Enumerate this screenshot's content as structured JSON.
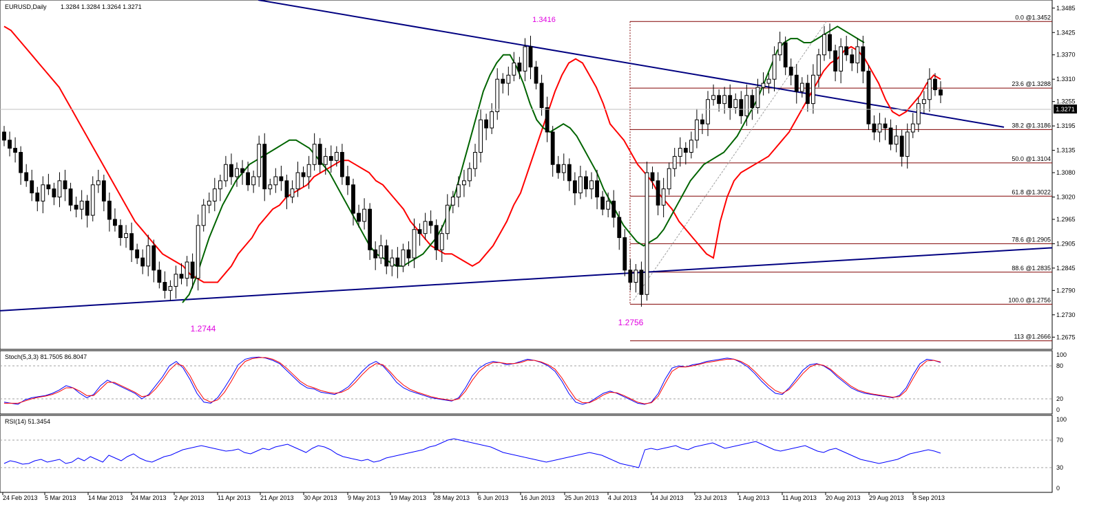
{
  "header": {
    "symbol": "EURUSD,Daily",
    "ohlc": "1.3284 1.3284 1.3264 1.3271"
  },
  "colors": {
    "bull_candle": "#ffffff",
    "bear_candle": "#000000",
    "ma_fast": "#ff0000",
    "ma_slow": "#006400",
    "ma_transition": "#ffff00",
    "trendline": "#000080",
    "fib_lines": "#800000",
    "stoch_main": "#0000ff",
    "stoch_signal": "#ff0000",
    "rsi": "#0000ff",
    "annotation": "#e000e0"
  },
  "chart_data": [
    {
      "type": "candlestick",
      "title": "EURUSD,Daily",
      "ohlc_last": {
        "open": 1.3284,
        "high": 1.3284,
        "low": 1.3264,
        "close": 1.3271
      },
      "current_price_label": "1.3271",
      "ylim": [
        1.2645,
        1.3505
      ],
      "y_ticks": [
        "1.3485",
        "1.3425",
        "1.3370",
        "1.3310",
        "1.3255",
        "1.3195",
        "1.3135",
        "1.3080",
        "1.3020",
        "1.2965",
        "1.2905",
        "1.2845",
        "1.2790",
        "1.2730",
        "1.2675"
      ],
      "x_ticks": [
        "24 Feb 2013",
        "5 Mar 2013",
        "14 Mar 2013",
        "24 Mar 2013",
        "2 Apr 2013",
        "11 Apr 2013",
        "21 Apr 2013",
        "30 Apr 2013",
        "9 May 2013",
        "19 May 2013",
        "28 May 2013",
        "6 Jun 2013",
        "16 Jun 2013",
        "25 Jun 2013",
        "4 Jul 2013",
        "14 Jul 2013",
        "23 Jul 2013",
        "1 Aug 2013",
        "11 Aug 2013",
        "20 Aug 2013",
        "29 Aug 2013",
        "8 Sep 2013"
      ],
      "closes": [
        1.316,
        1.314,
        1.313,
        1.308,
        1.306,
        1.303,
        1.301,
        1.305,
        1.304,
        1.302,
        1.306,
        1.304,
        1.3,
        1.299,
        1.301,
        1.2975,
        1.305,
        1.306,
        1.301,
        1.2965,
        1.295,
        1.292,
        1.293,
        1.289,
        1.287,
        1.285,
        1.29,
        1.284,
        1.281,
        1.279,
        1.28,
        1.283,
        1.282,
        1.286,
        1.282,
        1.295,
        1.3,
        1.301,
        1.304,
        1.306,
        1.31,
        1.307,
        1.309,
        1.308,
        1.305,
        1.307,
        1.315,
        1.304,
        1.305,
        1.307,
        1.306,
        1.302,
        1.304,
        1.308,
        1.307,
        1.31,
        1.315,
        1.31,
        1.312,
        1.311,
        1.313,
        1.307,
        1.305,
        1.298,
        1.296,
        1.299,
        1.289,
        1.287,
        1.29,
        1.285,
        1.287,
        1.285,
        1.289,
        1.287,
        1.294,
        1.293,
        1.296,
        1.295,
        1.289,
        1.293,
        1.3,
        1.302,
        1.305,
        1.306,
        1.309,
        1.313,
        1.321,
        1.319,
        1.323,
        1.331,
        1.33,
        1.332,
        1.335,
        1.333,
        1.339,
        1.334,
        1.33,
        1.324,
        1.318,
        1.31,
        1.308,
        1.31,
        1.306,
        1.303,
        1.307,
        1.304,
        1.306,
        1.302,
        1.299,
        1.301,
        1.297,
        1.292,
        1.284,
        1.281,
        1.284,
        1.278,
        1.308,
        1.306,
        1.3,
        1.304,
        1.309,
        1.312,
        1.314,
        1.313,
        1.316,
        1.321,
        1.32,
        1.326,
        1.327,
        1.325,
        1.327,
        1.324,
        1.326,
        1.322,
        1.327,
        1.324,
        1.329,
        1.33,
        1.331,
        1.337,
        1.34,
        1.334,
        1.332,
        1.328,
        1.33,
        1.325,
        1.332,
        1.337,
        1.342,
        1.338,
        1.333,
        1.339,
        1.337,
        1.335,
        1.339,
        1.333,
        1.32,
        1.318,
        1.32,
        1.319,
        1.315,
        1.317,
        1.312,
        1.318,
        1.32,
        1.325,
        1.326,
        1.331,
        1.3284,
        1.3271
      ],
      "ma_fast_values": [
        1.344,
        1.343,
        1.341,
        1.339,
        1.337,
        1.335,
        1.333,
        1.331,
        1.329,
        1.326,
        1.323,
        1.32,
        1.317,
        1.314,
        1.311,
        1.308,
        1.305,
        1.302,
        1.299,
        1.296,
        1.294,
        1.292,
        1.29,
        1.288,
        1.287,
        1.286,
        1.285,
        1.283,
        1.282,
        1.281,
        1.281,
        1.281,
        1.283,
        1.285,
        1.288,
        1.29,
        1.292,
        1.295,
        1.297,
        1.299,
        1.3,
        1.302,
        1.303,
        1.304,
        1.305,
        1.307,
        1.308,
        1.309,
        1.31,
        1.311,
        1.311,
        1.31,
        1.309,
        1.308,
        1.306,
        1.305,
        1.303,
        1.301,
        1.299,
        1.296,
        1.294,
        1.292,
        1.29,
        1.289,
        1.288,
        1.288,
        1.287,
        1.286,
        1.285,
        1.286,
        1.288,
        1.29,
        1.293,
        1.296,
        1.3,
        1.303,
        1.308,
        1.313,
        1.318,
        1.323,
        1.328,
        1.332,
        1.335,
        1.336,
        1.335,
        1.332,
        1.329,
        1.325,
        1.32,
        1.318,
        1.316,
        1.313,
        1.31,
        1.308,
        1.306,
        1.303,
        1.301,
        1.299,
        1.296,
        1.294,
        1.292,
        1.29,
        1.288,
        1.287,
        1.296,
        1.302,
        1.306,
        1.308,
        1.309,
        1.31,
        1.311,
        1.312,
        1.314,
        1.316,
        1.318,
        1.321,
        1.324,
        1.327,
        1.33,
        1.333,
        1.335,
        1.336,
        1.338,
        1.339,
        1.338,
        1.336,
        1.333,
        1.33,
        1.326,
        1.323,
        1.322,
        1.323,
        1.325,
        1.327,
        1.33,
        1.332,
        1.331
      ],
      "ma_slow_values": [
        1.276,
        1.278,
        1.282,
        1.287,
        1.292,
        1.296,
        1.3,
        1.303,
        1.306,
        1.308,
        1.31,
        1.311,
        1.312,
        1.313,
        1.314,
        1.315,
        1.316,
        1.316,
        1.315,
        1.314,
        1.312,
        1.31,
        1.308,
        1.305,
        1.302,
        1.299,
        1.296,
        1.293,
        1.29,
        1.288,
        1.287,
        1.286,
        1.285,
        1.285,
        1.286,
        1.287,
        1.288,
        1.29,
        1.292,
        1.295,
        1.299,
        1.304,
        1.31,
        1.316,
        1.322,
        1.328,
        1.332,
        1.335,
        1.337,
        1.337,
        1.334,
        1.33,
        1.325,
        1.321,
        1.319,
        1.318,
        1.319,
        1.32,
        1.319,
        1.317,
        1.314,
        1.311,
        1.308,
        1.304,
        1.301,
        1.298,
        1.295,
        1.293,
        1.291,
        1.29,
        1.291,
        1.292,
        1.294,
        1.297,
        1.3,
        1.303,
        1.306,
        1.308,
        1.31,
        1.311,
        1.312,
        1.313,
        1.315,
        1.317,
        1.32,
        1.323,
        1.326,
        1.33,
        1.334,
        1.338,
        1.34,
        1.341,
        1.341,
        1.34,
        1.34,
        1.341,
        1.342,
        1.343,
        1.344,
        1.343,
        1.342,
        1.341,
        1.34
      ],
      "annotations": [
        "1.3416",
        "1.2744",
        "1.2756"
      ],
      "fibonacci_levels": [
        {
          "label": "0.0 @1.3452",
          "value": 1.3452
        },
        {
          "label": "23.6 @1.3288",
          "value": 1.3288
        },
        {
          "label": "38.2 @1.3186",
          "value": 1.3186
        },
        {
          "label": "50.0 @1.3104",
          "value": 1.3104
        },
        {
          "label": "61.8 @1.3022",
          "value": 1.3022
        },
        {
          "label": "78.6 @1.2905",
          "value": 1.2905
        },
        {
          "label": "88.6 @1.2835",
          "value": 1.2835
        },
        {
          "label": "100.0 @1.2756",
          "value": 1.2756
        },
        {
          "label": "113 @1.2666",
          "value": 1.2666
        }
      ]
    },
    {
      "type": "line",
      "title": "Stoch(5,3,3) 81.7505 86.8047",
      "ylim": [
        0,
        100
      ],
      "y_ticks": [
        "100",
        "80",
        "20",
        "0"
      ],
      "levels": [
        80,
        20
      ],
      "series": [
        {
          "values": [
            14,
            12,
            10,
            18,
            22,
            24,
            26,
            30,
            36,
            44,
            40,
            30,
            22,
            28,
            44,
            54,
            48,
            42,
            36,
            30,
            20,
            28,
            44,
            60,
            80,
            88,
            76,
            55,
            30,
            14,
            12,
            22,
            40,
            60,
            82,
            92,
            95,
            96,
            94,
            90,
            84,
            72,
            60,
            48,
            40,
            38,
            32,
            30,
            28,
            34,
            42,
            56,
            70,
            82,
            88,
            80,
            66,
            50,
            40,
            34,
            30,
            26,
            22,
            20,
            18,
            16,
            22,
            40,
            62,
            76,
            84,
            88,
            86,
            82,
            84,
            88,
            92,
            90,
            86,
            80,
            70,
            52,
            30,
            14,
            10,
            14,
            22,
            30,
            34,
            30,
            24,
            18,
            12,
            10,
            14,
            30,
            56,
            76,
            80,
            78,
            82,
            84,
            88,
            90,
            92,
            94,
            92,
            86,
            78,
            66,
            52,
            40,
            30,
            28,
            40,
            56,
            72,
            82,
            84,
            80,
            72,
            60,
            50,
            40,
            34,
            30,
            28,
            26,
            24,
            22,
            26,
            40,
            64,
            84,
            92,
            90,
            86
          ],
          "color_ref": "stoch_main"
        },
        {
          "values": [
            12,
            12,
            12,
            16,
            20,
            23,
            25,
            28,
            33,
            40,
            40,
            34,
            26,
            26,
            38,
            50,
            50,
            44,
            38,
            32,
            24,
            26,
            38,
            54,
            72,
            84,
            80,
            62,
            38,
            20,
            14,
            18,
            32,
            52,
            74,
            88,
            93,
            95,
            95,
            92,
            86,
            76,
            64,
            52,
            44,
            40,
            35,
            32,
            30,
            32,
            38,
            50,
            64,
            76,
            84,
            82,
            70,
            56,
            45,
            37,
            32,
            28,
            24,
            21,
            19,
            17,
            20,
            34,
            54,
            70,
            80,
            86,
            86,
            84,
            84,
            86,
            90,
            90,
            87,
            82,
            74,
            58,
            38,
            20,
            13,
            13,
            19,
            27,
            32,
            31,
            26,
            20,
            14,
            11,
            13,
            25,
            48,
            70,
            78,
            78,
            80,
            83,
            86,
            88,
            90,
            92,
            92,
            88,
            81,
            70,
            57,
            45,
            35,
            30,
            37,
            51,
            66,
            78,
            83,
            81,
            74,
            63,
            53,
            43,
            36,
            32,
            29,
            27,
            25,
            23,
            24,
            35,
            57,
            78,
            89,
            90,
            87
          ],
          "color_ref": "stoch_signal"
        }
      ]
    },
    {
      "type": "line",
      "title": "RSI(14) 51.3454",
      "ylim": [
        0,
        100
      ],
      "y_ticks": [
        "100",
        "70",
        "30",
        "0"
      ],
      "levels": [
        70,
        30
      ],
      "series": [
        {
          "values": [
            36,
            40,
            38,
            35,
            36,
            40,
            42,
            38,
            40,
            42,
            36,
            38,
            44,
            40,
            46,
            42,
            38,
            48,
            44,
            40,
            46,
            50,
            44,
            40,
            38,
            42,
            46,
            48,
            52,
            56,
            58,
            60,
            62,
            60,
            58,
            56,
            54,
            55,
            57,
            52,
            50,
            54,
            58,
            56,
            60,
            62,
            64,
            60,
            56,
            52,
            58,
            62,
            60,
            56,
            50,
            46,
            44,
            42,
            40,
            42,
            38,
            40,
            44,
            46,
            48,
            50,
            52,
            54,
            56,
            60,
            62,
            66,
            70,
            72,
            70,
            68,
            66,
            64,
            62,
            60,
            56,
            52,
            50,
            48,
            46,
            44,
            42,
            40,
            38,
            40,
            42,
            44,
            46,
            48,
            50,
            52,
            50,
            48,
            44,
            40,
            36,
            34,
            32,
            30,
            56,
            58,
            56,
            58,
            60,
            62,
            58,
            56,
            60,
            62,
            64,
            66,
            62,
            58,
            60,
            62,
            64,
            66,
            68,
            64,
            60,
            56,
            54,
            56,
            58,
            60,
            62,
            58,
            54,
            52,
            56,
            58,
            54,
            50,
            46,
            42,
            40,
            38,
            36,
            38,
            40,
            42,
            46,
            50,
            52,
            54,
            56,
            54,
            51
          ],
          "color_ref": "rsi"
        }
      ]
    }
  ]
}
